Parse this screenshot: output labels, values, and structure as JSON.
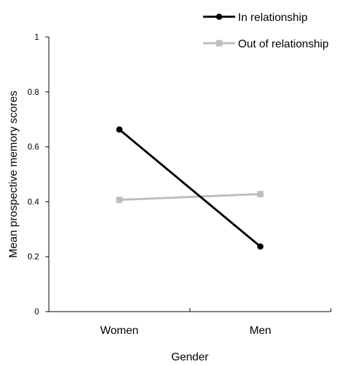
{
  "chart_data": {
    "type": "line",
    "xlabel": "Gender",
    "ylabel": "Mean prospective memory scores",
    "categories": [
      "Women",
      "Men"
    ],
    "ylim": [
      0,
      1
    ],
    "yticks": [
      "0",
      "0.2",
      "0.4",
      "0.6",
      "0.8",
      "1"
    ],
    "grid": false,
    "legend": "top-right",
    "series": [
      {
        "name": "In relationship",
        "values": [
          0.663,
          0.237
        ],
        "color": "#000000",
        "marker": "circle"
      },
      {
        "name": "Out of relationship",
        "values": [
          0.407,
          0.428
        ],
        "color": "#bdbdbd",
        "marker": "square"
      }
    ]
  }
}
